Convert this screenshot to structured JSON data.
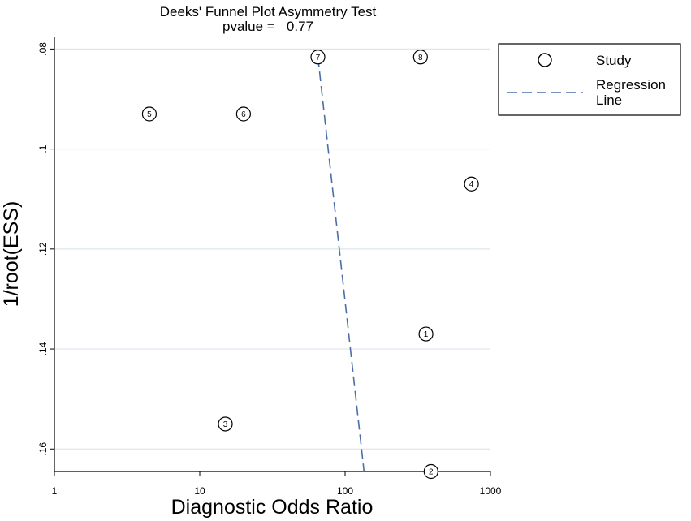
{
  "chart_data": {
    "type": "scatter",
    "title": "Deeks' Funnel Plot Asymmetry Test",
    "subtitle": "pvalue =   0.77",
    "xlabel": "Diagnostic Odds Ratio",
    "ylabel": "1/root(ESS)",
    "x_scale": "log",
    "xlim": [
      1,
      1000
    ],
    "ylim": [
      0.0775,
      0.1645
    ],
    "y_reversed": true,
    "x_ticks": [
      {
        "value": 1,
        "label": "1"
      },
      {
        "value": 10,
        "label": "10"
      },
      {
        "value": 100,
        "label": "100"
      },
      {
        "value": 1000,
        "label": "1000"
      }
    ],
    "y_ticks": [
      {
        "value": 0.08,
        "label": ".08"
      },
      {
        "value": 0.1,
        "label": ".1"
      },
      {
        "value": 0.12,
        "label": ".12"
      },
      {
        "value": 0.14,
        "label": ".14"
      },
      {
        "value": 0.16,
        "label": ".16"
      }
    ],
    "grid": true,
    "legend_position": "right",
    "legend": [
      {
        "label": "Study",
        "symbol": "circle"
      },
      {
        "label": "Regression\nLine",
        "symbol": "dashed-line"
      }
    ],
    "studies": [
      {
        "label": "1",
        "x": 360,
        "y": 0.137
      },
      {
        "label": "2",
        "x": 390,
        "y": 0.1645
      },
      {
        "label": "3",
        "x": 15,
        "y": 0.155
      },
      {
        "label": "4",
        "x": 740,
        "y": 0.107
      },
      {
        "label": "5",
        "x": 4.5,
        "y": 0.093
      },
      {
        "label": "6",
        "x": 20,
        "y": 0.093
      },
      {
        "label": "7",
        "x": 65,
        "y": 0.0816
      },
      {
        "label": "8",
        "x": 330,
        "y": 0.0816
      }
    ],
    "regression_line": {
      "x": [
        65,
        135
      ],
      "y": [
        0.0816,
        0.1645
      ]
    },
    "colors": {
      "regression": "#4a6fa5",
      "grid": "#dce6ec",
      "marker": "#000000"
    }
  }
}
